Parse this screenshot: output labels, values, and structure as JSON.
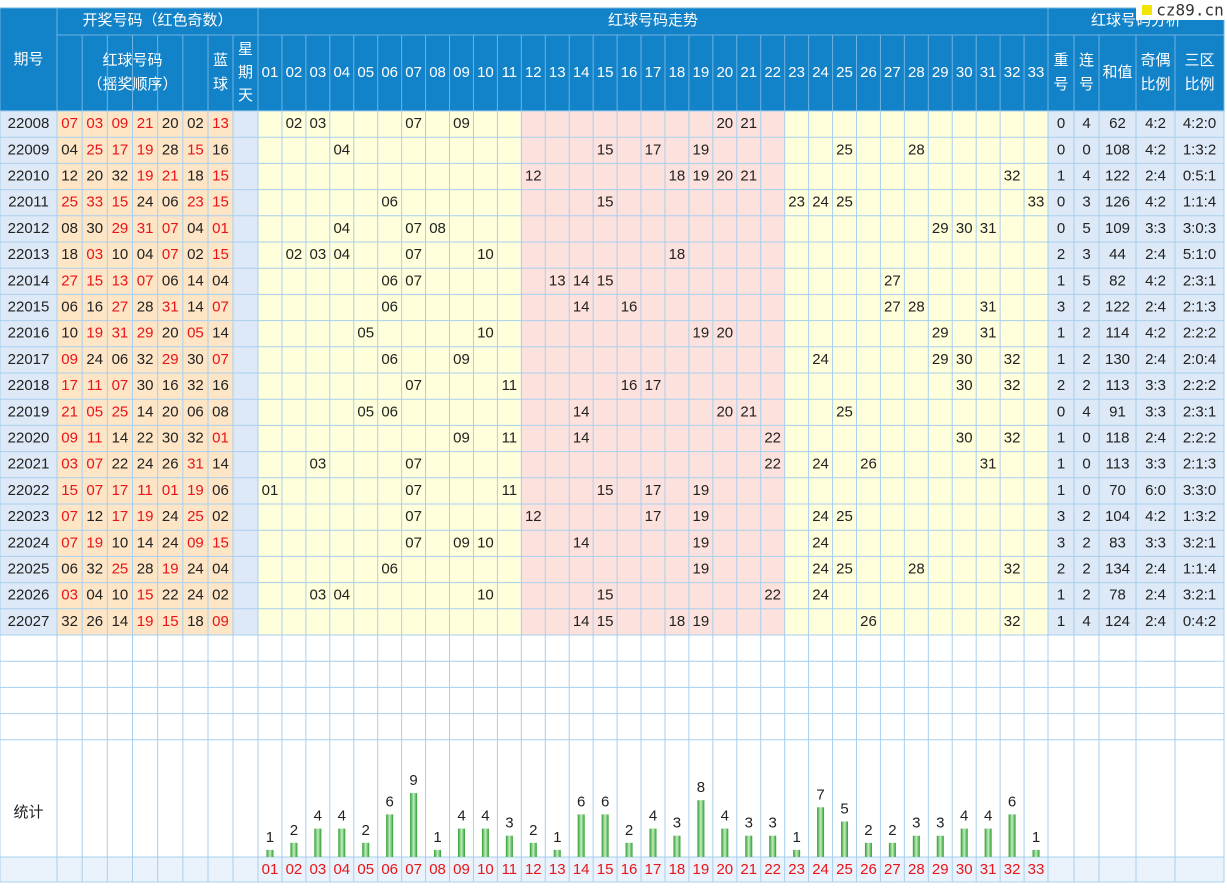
{
  "logo": "cz89.cn",
  "header": {
    "period": "期号",
    "draw": "开奖号码（红色奇数）",
    "trend": "红球号码走势",
    "analysis": "红球号码分析",
    "red": [
      "红球号码",
      "（摇奖顺序）"
    ],
    "blue": [
      "蓝",
      "球"
    ],
    "weekday": [
      "星",
      "期",
      "天"
    ],
    "columns": [
      "01",
      "02",
      "03",
      "04",
      "05",
      "06",
      "07",
      "08",
      "09",
      "10",
      "11",
      "12",
      "13",
      "14",
      "15",
      "16",
      "17",
      "18",
      "19",
      "20",
      "21",
      "22",
      "23",
      "24",
      "25",
      "26",
      "27",
      "28",
      "29",
      "30",
      "31",
      "32",
      "33"
    ],
    "repeat": [
      "重",
      "号"
    ],
    "consecutive": [
      "连",
      "号"
    ],
    "sum": [
      "和值"
    ],
    "odd_even": [
      "奇偶",
      "比例"
    ],
    "zones": [
      "三区",
      "比例"
    ]
  },
  "rows": [
    {
      "period": "22008",
      "red": [
        "07",
        "03",
        "09",
        "21",
        "20",
        "02"
      ],
      "blue": "13",
      "trend": [
        "02",
        "03",
        "07",
        "09",
        "20",
        "21"
      ],
      "repeat": "0",
      "consecutive": "4",
      "sum": "62",
      "odd_even": "4:2",
      "zones": "4:2:0"
    },
    {
      "period": "22009",
      "red": [
        "04",
        "25",
        "17",
        "19",
        "28",
        "15"
      ],
      "blue": "16",
      "trend": [
        "04",
        "15",
        "17",
        "19",
        "25",
        "28"
      ],
      "repeat": "0",
      "consecutive": "0",
      "sum": "108",
      "odd_even": "4:2",
      "zones": "1:3:2"
    },
    {
      "period": "22010",
      "red": [
        "12",
        "20",
        "32",
        "19",
        "21",
        "18"
      ],
      "blue": "15",
      "trend": [
        "12",
        "18",
        "19",
        "20",
        "21",
        "32"
      ],
      "repeat": "1",
      "consecutive": "4",
      "sum": "122",
      "odd_even": "2:4",
      "zones": "0:5:1"
    },
    {
      "period": "22011",
      "red": [
        "25",
        "33",
        "15",
        "24",
        "06",
        "23"
      ],
      "blue": "15",
      "trend": [
        "06",
        "15",
        "23",
        "24",
        "25",
        "33"
      ],
      "repeat": "0",
      "consecutive": "3",
      "sum": "126",
      "odd_even": "4:2",
      "zones": "1:1:4"
    },
    {
      "period": "22012",
      "red": [
        "08",
        "30",
        "29",
        "31",
        "07",
        "04"
      ],
      "blue": "01",
      "trend": [
        "04",
        "07",
        "08",
        "29",
        "30",
        "31"
      ],
      "repeat": "0",
      "consecutive": "5",
      "sum": "109",
      "odd_even": "3:3",
      "zones": "3:0:3"
    },
    {
      "period": "22013",
      "red": [
        "18",
        "03",
        "10",
        "04",
        "07",
        "02"
      ],
      "blue": "15",
      "trend": [
        "02",
        "03",
        "04",
        "07",
        "10",
        "18"
      ],
      "repeat": "2",
      "consecutive": "3",
      "sum": "44",
      "odd_even": "2:4",
      "zones": "5:1:0"
    },
    {
      "period": "22014",
      "red": [
        "27",
        "15",
        "13",
        "07",
        "06",
        "14"
      ],
      "blue": "04",
      "trend": [
        "06",
        "07",
        "13",
        "14",
        "15",
        "27"
      ],
      "repeat": "1",
      "consecutive": "5",
      "sum": "82",
      "odd_even": "4:2",
      "zones": "2:3:1"
    },
    {
      "period": "22015",
      "red": [
        "06",
        "16",
        "27",
        "28",
        "31",
        "14"
      ],
      "blue": "07",
      "trend": [
        "06",
        "14",
        "16",
        "27",
        "28",
        "31"
      ],
      "repeat": "3",
      "consecutive": "2",
      "sum": "122",
      "odd_even": "2:4",
      "zones": "2:1:3"
    },
    {
      "period": "22016",
      "red": [
        "10",
        "19",
        "31",
        "29",
        "20",
        "05"
      ],
      "blue": "14",
      "trend": [
        "05",
        "10",
        "19",
        "20",
        "29",
        "31"
      ],
      "repeat": "1",
      "consecutive": "2",
      "sum": "114",
      "odd_even": "4:2",
      "zones": "2:2:2"
    },
    {
      "period": "22017",
      "red": [
        "09",
        "24",
        "06",
        "32",
        "29",
        "30"
      ],
      "blue": "07",
      "trend": [
        "06",
        "09",
        "24",
        "29",
        "30",
        "32"
      ],
      "repeat": "1",
      "consecutive": "2",
      "sum": "130",
      "odd_even": "2:4",
      "zones": "2:0:4"
    },
    {
      "period": "22018",
      "red": [
        "17",
        "11",
        "07",
        "30",
        "16",
        "32"
      ],
      "blue": "16",
      "trend": [
        "07",
        "11",
        "16",
        "17",
        "30",
        "32"
      ],
      "repeat": "2",
      "consecutive": "2",
      "sum": "113",
      "odd_even": "3:3",
      "zones": "2:2:2"
    },
    {
      "period": "22019",
      "red": [
        "21",
        "05",
        "25",
        "14",
        "20",
        "06"
      ],
      "blue": "08",
      "trend": [
        "05",
        "06",
        "14",
        "20",
        "21",
        "25"
      ],
      "repeat": "0",
      "consecutive": "4",
      "sum": "91",
      "odd_even": "3:3",
      "zones": "2:3:1"
    },
    {
      "period": "22020",
      "red": [
        "09",
        "11",
        "14",
        "22",
        "30",
        "32"
      ],
      "blue": "01",
      "trend": [
        "09",
        "11",
        "14",
        "22",
        "30",
        "32"
      ],
      "repeat": "1",
      "consecutive": "0",
      "sum": "118",
      "odd_even": "2:4",
      "zones": "2:2:2"
    },
    {
      "period": "22021",
      "red": [
        "03",
        "07",
        "22",
        "24",
        "26",
        "31"
      ],
      "blue": "14",
      "trend": [
        "03",
        "07",
        "22",
        "24",
        "26",
        "31"
      ],
      "repeat": "1",
      "consecutive": "0",
      "sum": "113",
      "odd_even": "3:3",
      "zones": "2:1:3"
    },
    {
      "period": "22022",
      "red": [
        "15",
        "07",
        "17",
        "11",
        "01",
        "19"
      ],
      "blue": "06",
      "trend": [
        "01",
        "07",
        "11",
        "15",
        "17",
        "19"
      ],
      "repeat": "1",
      "consecutive": "0",
      "sum": "70",
      "odd_even": "6:0",
      "zones": "3:3:0"
    },
    {
      "period": "22023",
      "red": [
        "07",
        "12",
        "17",
        "19",
        "24",
        "25"
      ],
      "blue": "02",
      "trend": [
        "07",
        "12",
        "17",
        "19",
        "24",
        "25"
      ],
      "repeat": "3",
      "consecutive": "2",
      "sum": "104",
      "odd_even": "4:2",
      "zones": "1:3:2"
    },
    {
      "period": "22024",
      "red": [
        "07",
        "19",
        "10",
        "14",
        "24",
        "09"
      ],
      "blue": "15",
      "trend": [
        "07",
        "09",
        "10",
        "14",
        "19",
        "24"
      ],
      "repeat": "3",
      "consecutive": "2",
      "sum": "83",
      "odd_even": "3:3",
      "zones": "3:2:1"
    },
    {
      "period": "22025",
      "red": [
        "06",
        "32",
        "25",
        "28",
        "19",
        "24"
      ],
      "blue": "04",
      "trend": [
        "06",
        "19",
        "24",
        "25",
        "28",
        "32"
      ],
      "repeat": "2",
      "consecutive": "2",
      "sum": "134",
      "odd_even": "2:4",
      "zones": "1:1:4"
    },
    {
      "period": "22026",
      "red": [
        "03",
        "04",
        "10",
        "15",
        "22",
        "24"
      ],
      "blue": "02",
      "trend": [
        "03",
        "04",
        "10",
        "15",
        "22",
        "24"
      ],
      "repeat": "1",
      "consecutive": "2",
      "sum": "78",
      "odd_even": "2:4",
      "zones": "3:2:1"
    },
    {
      "period": "22027",
      "red": [
        "32",
        "26",
        "14",
        "19",
        "15",
        "18"
      ],
      "blue": "09",
      "trend": [
        "14",
        "15",
        "18",
        "19",
        "26",
        "32"
      ],
      "repeat": "1",
      "consecutive": "4",
      "sum": "124",
      "odd_even": "2:4",
      "zones": "0:4:2"
    }
  ],
  "stats": {
    "label": "统计",
    "counts": [
      1,
      2,
      4,
      4,
      2,
      6,
      9,
      1,
      4,
      4,
      3,
      2,
      1,
      6,
      6,
      2,
      4,
      3,
      8,
      4,
      3,
      3,
      1,
      7,
      5,
      2,
      2,
      3,
      3,
      4,
      4,
      6,
      1
    ]
  }
}
